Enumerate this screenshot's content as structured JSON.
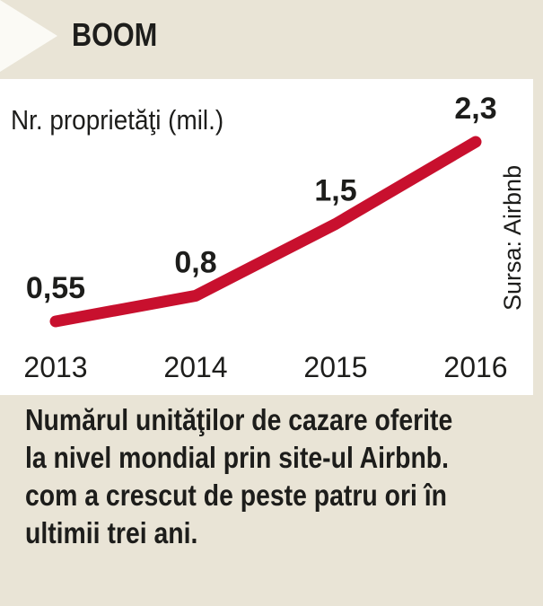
{
  "header": {
    "title": "BOOM"
  },
  "chart_data": {
    "type": "line",
    "ylabel": "Nr. proprietăţi (mil.)",
    "categories": [
      "2013",
      "2014",
      "2015",
      "2016"
    ],
    "values": [
      0.55,
      0.8,
      1.5,
      2.3
    ],
    "value_labels": [
      "0,55",
      "0,8",
      "1,5",
      "2,3"
    ],
    "source": "Sursa: Airbnb",
    "line_color": "#c8102e",
    "grid": false,
    "legend": "none"
  },
  "caption": {
    "lines": [
      "Numărul unităţilor de cazare oferite",
      "la nivel mondial prin site-ul Airbnb.",
      "com a crescut de peste patru ori în",
      "ultimii trei ani."
    ]
  }
}
